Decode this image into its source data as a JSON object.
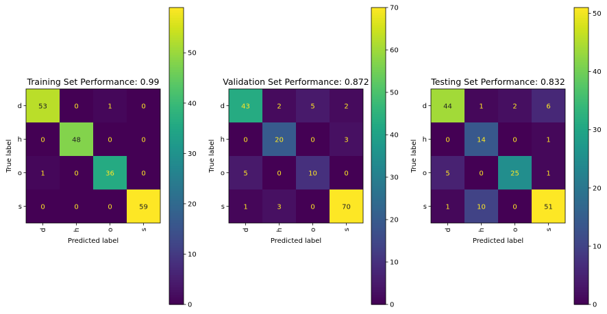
{
  "chart_data": [
    {
      "type": "heatmap",
      "title": "Training Set Performance: 0.99",
      "xlabel": "Predicted label",
      "ylabel": "True label",
      "x_categories": [
        "d",
        "h",
        "o",
        "s"
      ],
      "y_categories": [
        "d",
        "h",
        "o",
        "s"
      ],
      "values": [
        [
          53,
          0,
          1,
          0
        ],
        [
          0,
          48,
          0,
          0
        ],
        [
          1,
          0,
          36,
          0
        ],
        [
          0,
          0,
          0,
          59
        ]
      ],
      "colorbar": {
        "min": 0,
        "max": 59,
        "ticks": [
          0,
          10,
          20,
          30,
          40,
          50
        ]
      },
      "colormap": "viridis",
      "grid": false
    },
    {
      "type": "heatmap",
      "title": "Validation Set Performance: 0.872",
      "xlabel": "Predicted label",
      "ylabel": "True label",
      "x_categories": [
        "d",
        "h",
        "o",
        "s"
      ],
      "y_categories": [
        "d",
        "h",
        "o",
        "s"
      ],
      "values": [
        [
          43,
          2,
          5,
          2
        ],
        [
          0,
          20,
          0,
          3
        ],
        [
          5,
          0,
          10,
          0
        ],
        [
          1,
          3,
          0,
          70
        ]
      ],
      "colorbar": {
        "min": 0,
        "max": 70,
        "ticks": [
          0,
          10,
          20,
          30,
          40,
          50,
          60,
          70
        ]
      },
      "colormap": "viridis",
      "grid": false
    },
    {
      "type": "heatmap",
      "title": "Testing Set Performance: 0.832",
      "xlabel": "Predicted label",
      "ylabel": "True label",
      "x_categories": [
        "d",
        "h",
        "o",
        "s"
      ],
      "y_categories": [
        "d",
        "h",
        "o",
        "s"
      ],
      "values": [
        [
          44,
          1,
          2,
          6
        ],
        [
          0,
          14,
          0,
          1
        ],
        [
          5,
          0,
          25,
          1
        ],
        [
          1,
          10,
          0,
          51
        ]
      ],
      "colorbar": {
        "min": 0,
        "max": 51,
        "ticks": [
          0,
          10,
          20,
          30,
          40,
          50
        ]
      },
      "colormap": "viridis",
      "grid": false
    }
  ]
}
